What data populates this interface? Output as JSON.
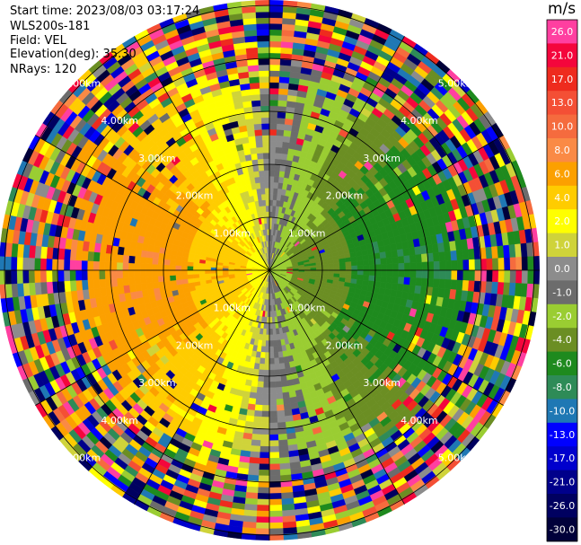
{
  "info": {
    "start_time": "Start time: 2023/08/03 03:17:24",
    "site": "WLS200s-181",
    "field": "Field: VEL",
    "elevation": "Elevation(deg): 35.30",
    "nrays": "NRays: 120"
  },
  "colorbar": {
    "unit": "m/s",
    "levels": [
      {
        "label": "26.0",
        "color": "#ff3fa0"
      },
      {
        "label": "21.0",
        "color": "#f4063c"
      },
      {
        "label": "17.0",
        "color": "#ee2b1e"
      },
      {
        "label": "13.0",
        "color": "#f44f35"
      },
      {
        "label": "10.0",
        "color": "#f56b3e"
      },
      {
        "label": "8.0",
        "color": "#fa8a45"
      },
      {
        "label": "6.0",
        "color": "#fca000"
      },
      {
        "label": "4.0",
        "color": "#ffcc00"
      },
      {
        "label": "2.0",
        "color": "#ffff00"
      },
      {
        "label": "1.0",
        "color": "#cfd33a"
      },
      {
        "label": "0.0",
        "color": "#8c8c8c"
      },
      {
        "label": "-1.0",
        "color": "#6c6c6c"
      },
      {
        "label": "-2.0",
        "color": "#9acd32"
      },
      {
        "label": "-4.0",
        "color": "#6b8e23"
      },
      {
        "label": "-6.0",
        "color": "#1e8a1e"
      },
      {
        "label": "-8.0",
        "color": "#2e8b57"
      },
      {
        "label": "-10.0",
        "color": "#1f78b4"
      },
      {
        "label": "-13.0",
        "color": "#0000ff"
      },
      {
        "label": "-17.0",
        "color": "#0000cd"
      },
      {
        "label": "-21.0",
        "color": "#00008b"
      },
      {
        "label": "-26.0",
        "color": "#000060"
      },
      {
        "label": "-30.0",
        "color": "#00003a"
      }
    ]
  },
  "chart_data": {
    "type": "heatmap",
    "projection": "polar PPI",
    "field": "VEL",
    "unit": "m/s",
    "range_rings_km": [
      1,
      2,
      3,
      4,
      5
    ],
    "ring_labels": [
      "1.00km",
      "2.00km",
      "3.00km",
      "4.00km",
      "5.00km"
    ],
    "nrays": 120,
    "colorbar_ticks": [
      26,
      21,
      17,
      13,
      10,
      8,
      6,
      4,
      2,
      1,
      0,
      -1,
      -2,
      -4,
      -6,
      -8,
      -10,
      -13,
      -17,
      -21,
      -26,
      -30
    ],
    "velocity_pattern": {
      "west_sector": "positive (2 to 8 m/s, yellow/orange)",
      "east_sector": "negative (-2 to -8 m/s, green)",
      "outer_range_km": "noisy beyond ~3.5 km"
    }
  }
}
